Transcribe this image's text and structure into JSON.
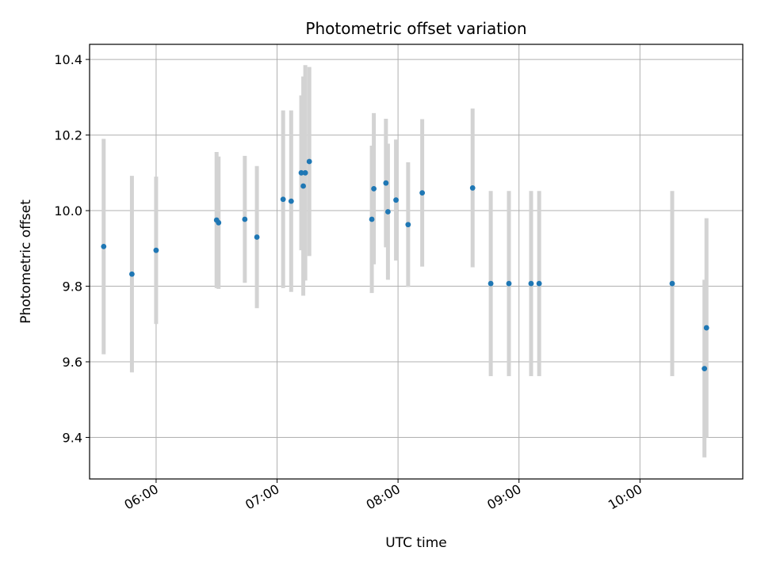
{
  "chart_data": {
    "type": "scatter",
    "title": "Photometric offset variation",
    "xlabel": "UTC time",
    "ylabel": "Photometric offset",
    "x_axis": {
      "kind": "time",
      "range": [
        "05:27",
        "10:51"
      ],
      "ticks": [
        "06:00",
        "07:00",
        "08:00",
        "09:00",
        "10:00"
      ],
      "tick_label_rotation": 30
    },
    "y_axis": {
      "range": [
        9.29,
        10.44
      ],
      "ticks": [
        9.4,
        9.6,
        9.8,
        10.0,
        10.2,
        10.4
      ],
      "tick_labels": [
        "9.4",
        "9.6",
        "9.8",
        "10.0",
        "10.2",
        "10.4"
      ]
    },
    "grid": true,
    "colors": {
      "points": "#1f77b4",
      "error_bars": "#d3d3d3",
      "grid": "#b0b0b0"
    },
    "points": [
      {
        "x": "05:34",
        "y": 9.905,
        "err": 0.285
      },
      {
        "x": "05:48",
        "y": 9.832,
        "err": 0.26
      },
      {
        "x": "06:00",
        "y": 9.895,
        "err": 0.195
      },
      {
        "x": "06:30",
        "y": 9.975,
        "err": 0.18
      },
      {
        "x": "06:31",
        "y": 9.968,
        "err": 0.175
      },
      {
        "x": "06:44",
        "y": 9.977,
        "err": 0.168
      },
      {
        "x": "06:50",
        "y": 9.93,
        "err": 0.188
      },
      {
        "x": "07:03",
        "y": 10.03,
        "err": 0.235
      },
      {
        "x": "07:07",
        "y": 10.025,
        "err": 0.24
      },
      {
        "x": "07:12",
        "y": 10.1,
        "err": 0.205
      },
      {
        "x": "07:13",
        "y": 10.065,
        "err": 0.29
      },
      {
        "x": "07:14",
        "y": 10.1,
        "err": 0.285
      },
      {
        "x": "07:16",
        "y": 10.13,
        "err": 0.25
      },
      {
        "x": "07:47",
        "y": 9.977,
        "err": 0.195
      },
      {
        "x": "07:48",
        "y": 10.058,
        "err": 0.2
      },
      {
        "x": "07:54",
        "y": 10.073,
        "err": 0.17
      },
      {
        "x": "07:55",
        "y": 9.997,
        "err": 0.18
      },
      {
        "x": "07:59",
        "y": 10.028,
        "err": 0.16
      },
      {
        "x": "08:05",
        "y": 9.963,
        "err": 0.165
      },
      {
        "x": "08:12",
        "y": 10.047,
        "err": 0.195
      },
      {
        "x": "08:37",
        "y": 10.06,
        "err": 0.21
      },
      {
        "x": "08:46",
        "y": 9.807,
        "err": 0.245
      },
      {
        "x": "08:55",
        "y": 9.807,
        "err": 0.245
      },
      {
        "x": "09:06",
        "y": 9.807,
        "err": 0.245
      },
      {
        "x": "09:10",
        "y": 9.807,
        "err": 0.245
      },
      {
        "x": "10:16",
        "y": 9.807,
        "err": 0.245
      },
      {
        "x": "10:32",
        "y": 9.582,
        "err": 0.235
      },
      {
        "x": "10:33",
        "y": 9.69,
        "err": 0.29
      }
    ]
  }
}
